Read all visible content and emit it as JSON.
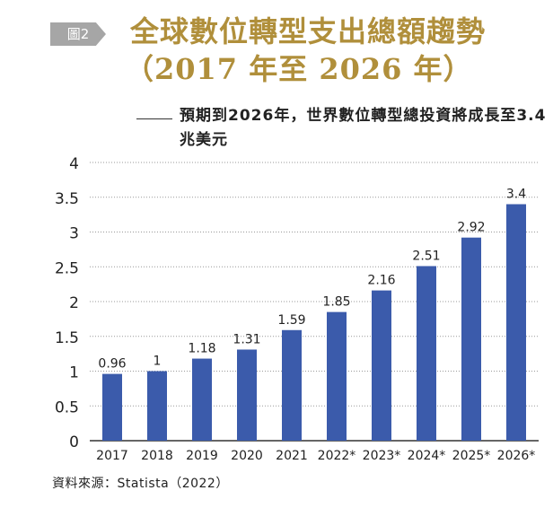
{
  "figure_badge": "圖2",
  "title_line1": "全球數位轉型支出總額趨勢",
  "title_line2": "（2017 年至 2026 年）",
  "subtitle": "預期到2026年，世界數位轉型總投資將成長至3.4兆美元",
  "source": "資料來源：Statista（2022）",
  "colors": {
    "bar": "#3b5bab",
    "title": "#b08f3b",
    "grid": "#999999"
  },
  "chart_data": {
    "type": "bar",
    "categories": [
      "2017",
      "2018",
      "2019",
      "2020",
      "2021",
      "2022*",
      "2023*",
      "2024*",
      "2025*",
      "2026*"
    ],
    "values": [
      0.96,
      1,
      1.18,
      1.31,
      1.59,
      1.85,
      2.16,
      2.51,
      2.92,
      3.4
    ],
    "value_labels": [
      "0.96",
      "1",
      "1.18",
      "1.31",
      "1.59",
      "1.85",
      "2.16",
      "2.51",
      "2.92",
      "3.4"
    ],
    "yticks": [
      "0",
      "0.5",
      "1",
      "1.5",
      "2",
      "2.5",
      "3",
      "3.5",
      "4"
    ],
    "ylim": [
      0,
      4
    ],
    "grid": true,
    "xlabel": "",
    "ylabel": ""
  }
}
